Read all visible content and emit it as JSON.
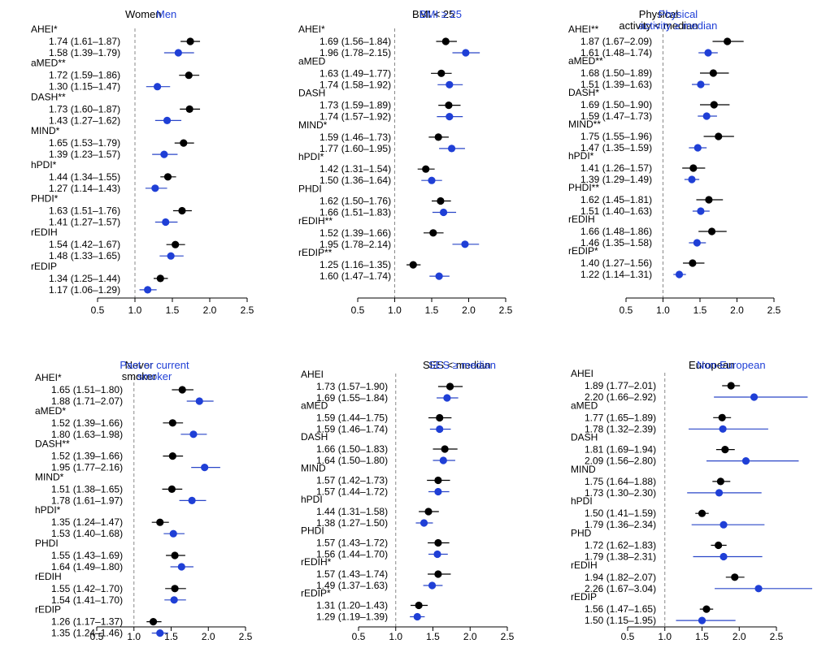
{
  "colors": {
    "group1": "#000000",
    "group2": "#1f3fd6",
    "refline": "#888888",
    "axis": "#000000",
    "cilineA": "#000000",
    "cilineB": "#2a46c8"
  },
  "chart_data": [
    {
      "type": "forest",
      "legend": {
        "group1": [
          "Women"
        ],
        "group2": [
          "Men"
        ]
      },
      "xlim": [
        0.5,
        2.5
      ],
      "ticks": [
        "0.5",
        "1.0",
        "1.5",
        "2.0",
        "2.5"
      ],
      "ref": 1.0,
      "rows": [
        {
          "label": "AHEI*",
          "g1": {
            "est": 1.74,
            "lo": 1.61,
            "hi": 1.87,
            "text": "1.74 (1.61–1.87)"
          },
          "g2": {
            "est": 1.58,
            "lo": 1.39,
            "hi": 1.79,
            "text": "1.58 (1.39–1.79)"
          }
        },
        {
          "label": "aMED**",
          "g1": {
            "est": 1.72,
            "lo": 1.59,
            "hi": 1.86,
            "text": "1.72 (1.59–1.86)"
          },
          "g2": {
            "est": 1.3,
            "lo": 1.15,
            "hi": 1.47,
            "text": "1.30 (1.15–1.47)"
          }
        },
        {
          "label": "DASH**",
          "g1": {
            "est": 1.73,
            "lo": 1.6,
            "hi": 1.87,
            "text": "1.73 (1.60–1.87)"
          },
          "g2": {
            "est": 1.43,
            "lo": 1.27,
            "hi": 1.62,
            "text": "1.43 (1.27–1.62)"
          }
        },
        {
          "label": "MIND*",
          "g1": {
            "est": 1.65,
            "lo": 1.53,
            "hi": 1.79,
            "text": "1.65 (1.53–1.79)"
          },
          "g2": {
            "est": 1.39,
            "lo": 1.23,
            "hi": 1.57,
            "text": "1.39 (1.23–1.57)"
          }
        },
        {
          "label": "hPDI*",
          "g1": {
            "est": 1.44,
            "lo": 1.34,
            "hi": 1.55,
            "text": "1.44 (1.34–1.55)"
          },
          "g2": {
            "est": 1.27,
            "lo": 1.14,
            "hi": 1.43,
            "text": "1.27 (1.14–1.43)"
          }
        },
        {
          "label": "PHDI*",
          "g1": {
            "est": 1.63,
            "lo": 1.51,
            "hi": 1.76,
            "text": "1.63 (1.51–1.76)"
          },
          "g2": {
            "est": 1.41,
            "lo": 1.27,
            "hi": 1.57,
            "text": "1.41 (1.27–1.57)"
          }
        },
        {
          "label": "rEDIH",
          "g1": {
            "est": 1.54,
            "lo": 1.42,
            "hi": 1.67,
            "text": "1.54 (1.42–1.67)"
          },
          "g2": {
            "est": 1.48,
            "lo": 1.33,
            "hi": 1.65,
            "text": "1.48 (1.33–1.65)"
          }
        },
        {
          "label": "rEDIP",
          "g1": {
            "est": 1.34,
            "lo": 1.25,
            "hi": 1.44,
            "text": "1.34 (1.25–1.44)"
          },
          "g2": {
            "est": 1.17,
            "lo": 1.06,
            "hi": 1.29,
            "text": "1.17 (1.06–1.29)"
          }
        }
      ]
    },
    {
      "type": "forest",
      "legend": {
        "group1": [
          "BMI < 25"
        ],
        "group2": [
          "BMI ≥ 25"
        ]
      },
      "xlim": [
        0.5,
        2.5
      ],
      "ticks": [
        "0.5",
        "1.0",
        "1.5",
        "2.0",
        "2.5"
      ],
      "ref": 1.0,
      "rows": [
        {
          "label": "AHEI*",
          "g1": {
            "est": 1.69,
            "lo": 1.56,
            "hi": 1.84,
            "text": "1.69 (1.56–1.84)"
          },
          "g2": {
            "est": 1.96,
            "lo": 1.78,
            "hi": 2.15,
            "text": "1.96 (1.78–2.15)"
          }
        },
        {
          "label": "aMED",
          "g1": {
            "est": 1.63,
            "lo": 1.49,
            "hi": 1.77,
            "text": "1.63 (1.49–1.77)"
          },
          "g2": {
            "est": 1.74,
            "lo": 1.58,
            "hi": 1.92,
            "text": "1.74 (1.58–1.92)"
          }
        },
        {
          "label": "DASH",
          "g1": {
            "est": 1.73,
            "lo": 1.59,
            "hi": 1.89,
            "text": "1.73 (1.59–1.89)"
          },
          "g2": {
            "est": 1.74,
            "lo": 1.57,
            "hi": 1.92,
            "text": "1.74 (1.57–1.92)"
          }
        },
        {
          "label": "MIND*",
          "g1": {
            "est": 1.59,
            "lo": 1.46,
            "hi": 1.73,
            "text": "1.59 (1.46–1.73)"
          },
          "g2": {
            "est": 1.77,
            "lo": 1.6,
            "hi": 1.95,
            "text": "1.77 (1.60–1.95)"
          }
        },
        {
          "label": "hPDI*",
          "g1": {
            "est": 1.42,
            "lo": 1.31,
            "hi": 1.54,
            "text": "1.42 (1.31–1.54)"
          },
          "g2": {
            "est": 1.5,
            "lo": 1.36,
            "hi": 1.64,
            "text": "1.50 (1.36–1.64)"
          }
        },
        {
          "label": "PHDI",
          "g1": {
            "est": 1.62,
            "lo": 1.5,
            "hi": 1.76,
            "text": "1.62 (1.50–1.76)"
          },
          "g2": {
            "est": 1.66,
            "lo": 1.51,
            "hi": 1.83,
            "text": "1.66 (1.51–1.83)"
          }
        },
        {
          "label": "rEDIH**",
          "g1": {
            "est": 1.52,
            "lo": 1.39,
            "hi": 1.66,
            "text": "1.52 (1.39–1.66)"
          },
          "g2": {
            "est": 1.95,
            "lo": 1.78,
            "hi": 2.14,
            "text": "1.95 (1.78–2.14)"
          }
        },
        {
          "label": "rEDIP**",
          "g1": {
            "est": 1.25,
            "lo": 1.16,
            "hi": 1.35,
            "text": "1.25 (1.16–1.35)"
          },
          "g2": {
            "est": 1.6,
            "lo": 1.47,
            "hi": 1.74,
            "text": "1.60 (1.47–1.74)"
          }
        }
      ]
    },
    {
      "type": "forest",
      "legend": {
        "group1": [
          "Physical",
          "activity < median"
        ],
        "group2": [
          "Physical",
          "activity ≥ median"
        ]
      },
      "xlim": [
        0.5,
        2.5
      ],
      "ticks": [
        "0.5",
        "1.0",
        "1.5",
        "2.0",
        "2.5"
      ],
      "ref": 1.0,
      "rows": [
        {
          "label": "AHEI**",
          "g1": {
            "est": 1.87,
            "lo": 1.67,
            "hi": 2.09,
            "text": "1.87 (1.67–2.09)"
          },
          "g2": {
            "est": 1.61,
            "lo": 1.48,
            "hi": 1.74,
            "text": "1.61 (1.48–1.74)"
          }
        },
        {
          "label": "aMED**",
          "g1": {
            "est": 1.68,
            "lo": 1.5,
            "hi": 1.89,
            "text": "1.68 (1.50–1.89)"
          },
          "g2": {
            "est": 1.51,
            "lo": 1.39,
            "hi": 1.63,
            "text": "1.51 (1.39–1.63)"
          }
        },
        {
          "label": "DASH*",
          "g1": {
            "est": 1.69,
            "lo": 1.5,
            "hi": 1.9,
            "text": "1.69 (1.50–1.90)"
          },
          "g2": {
            "est": 1.59,
            "lo": 1.47,
            "hi": 1.73,
            "text": "1.59 (1.47–1.73)"
          }
        },
        {
          "label": "MIND**",
          "g1": {
            "est": 1.75,
            "lo": 1.55,
            "hi": 1.96,
            "text": "1.75 (1.55–1.96)"
          },
          "g2": {
            "est": 1.47,
            "lo": 1.35,
            "hi": 1.59,
            "text": "1.47 (1.35–1.59)"
          }
        },
        {
          "label": "hPDI*",
          "g1": {
            "est": 1.41,
            "lo": 1.26,
            "hi": 1.57,
            "text": "1.41 (1.26–1.57)"
          },
          "g2": {
            "est": 1.39,
            "lo": 1.29,
            "hi": 1.49,
            "text": "1.39 (1.29–1.49)"
          }
        },
        {
          "label": "PHDI**",
          "g1": {
            "est": 1.62,
            "lo": 1.45,
            "hi": 1.81,
            "text": "1.62 (1.45–1.81)"
          },
          "g2": {
            "est": 1.51,
            "lo": 1.4,
            "hi": 1.63,
            "text": "1.51 (1.40–1.63)"
          }
        },
        {
          "label": "rEDIH",
          "g1": {
            "est": 1.66,
            "lo": 1.48,
            "hi": 1.86,
            "text": "1.66 (1.48–1.86)"
          },
          "g2": {
            "est": 1.46,
            "lo": 1.35,
            "hi": 1.58,
            "text": "1.46 (1.35–1.58)"
          }
        },
        {
          "label": "rEDIP*",
          "g1": {
            "est": 1.4,
            "lo": 1.27,
            "hi": 1.56,
            "text": "1.40 (1.27–1.56)"
          },
          "g2": {
            "est": 1.22,
            "lo": 1.14,
            "hi": 1.31,
            "text": "1.22 (1.14–1.31)"
          }
        }
      ]
    },
    {
      "type": "forest",
      "legend": {
        "group1": [
          "Never",
          "smoker"
        ],
        "group2": [
          "Past or current",
          "smoker"
        ]
      },
      "xlim": [
        0.5,
        2.5
      ],
      "ticks": [
        "0.5",
        "1.0",
        "1.5",
        "2.0",
        "2.5"
      ],
      "ref": 1.0,
      "rows": [
        {
          "label": "AHEI*",
          "g1": {
            "est": 1.65,
            "lo": 1.51,
            "hi": 1.8,
            "text": "1.65 (1.51–1.80)"
          },
          "g2": {
            "est": 1.88,
            "lo": 1.71,
            "hi": 2.07,
            "text": "1.88 (1.71–2.07)"
          }
        },
        {
          "label": "aMED*",
          "g1": {
            "est": 1.52,
            "lo": 1.39,
            "hi": 1.66,
            "text": "1.52 (1.39–1.66)"
          },
          "g2": {
            "est": 1.8,
            "lo": 1.63,
            "hi": 1.98,
            "text": "1.80 (1.63–1.98)"
          }
        },
        {
          "label": "DASH**",
          "g1": {
            "est": 1.52,
            "lo": 1.39,
            "hi": 1.66,
            "text": "1.52 (1.39–1.66)"
          },
          "g2": {
            "est": 1.95,
            "lo": 1.77,
            "hi": 2.16,
            "text": "1.95 (1.77–2.16)"
          }
        },
        {
          "label": "MIND*",
          "g1": {
            "est": 1.51,
            "lo": 1.38,
            "hi": 1.65,
            "text": "1.51 (1.38–1.65)"
          },
          "g2": {
            "est": 1.78,
            "lo": 1.61,
            "hi": 1.97,
            "text": "1.78 (1.61–1.97)"
          }
        },
        {
          "label": "hPDI*",
          "g1": {
            "est": 1.35,
            "lo": 1.24,
            "hi": 1.47,
            "text": "1.35 (1.24–1.47)"
          },
          "g2": {
            "est": 1.53,
            "lo": 1.4,
            "hi": 1.68,
            "text": "1.53 (1.40–1.68)"
          }
        },
        {
          "label": "PHDI",
          "g1": {
            "est": 1.55,
            "lo": 1.43,
            "hi": 1.69,
            "text": "1.55 (1.43–1.69)"
          },
          "g2": {
            "est": 1.64,
            "lo": 1.49,
            "hi": 1.8,
            "text": "1.64 (1.49–1.80)"
          }
        },
        {
          "label": "rEDIH",
          "g1": {
            "est": 1.55,
            "lo": 1.42,
            "hi": 1.7,
            "text": "1.55 (1.42–1.70)"
          },
          "g2": {
            "est": 1.54,
            "lo": 1.41,
            "hi": 1.7,
            "text": "1.54 (1.41–1.70)"
          }
        },
        {
          "label": "rEDIP",
          "g1": {
            "est": 1.26,
            "lo": 1.17,
            "hi": 1.37,
            "text": "1.26 (1.17–1.37)"
          },
          "g2": {
            "est": 1.35,
            "lo": 1.24,
            "hi": 1.46,
            "text": "1.35 (1.24–1.46)"
          }
        }
      ]
    },
    {
      "type": "forest",
      "legend": {
        "group1": [
          "SES < median"
        ],
        "group2": [
          "SES ≥ median"
        ]
      },
      "xlim": [
        0.5,
        2.5
      ],
      "ticks": [
        "0.5",
        "1.0",
        "1.5",
        "2.0",
        "2.5"
      ],
      "ref": 1.0,
      "rows": [
        {
          "label": "AHEI",
          "g1": {
            "est": 1.73,
            "lo": 1.57,
            "hi": 1.9,
            "text": "1.73 (1.57–1.90)"
          },
          "g2": {
            "est": 1.69,
            "lo": 1.55,
            "hi": 1.84,
            "text": "1.69 (1.55–1.84)"
          }
        },
        {
          "label": "aMED",
          "g1": {
            "est": 1.59,
            "lo": 1.44,
            "hi": 1.75,
            "text": "1.59 (1.44–1.75)"
          },
          "g2": {
            "est": 1.59,
            "lo": 1.46,
            "hi": 1.74,
            "text": "1.59 (1.46–1.74)"
          }
        },
        {
          "label": "DASH",
          "g1": {
            "est": 1.66,
            "lo": 1.5,
            "hi": 1.83,
            "text": "1.66 (1.50–1.83)"
          },
          "g2": {
            "est": 1.64,
            "lo": 1.5,
            "hi": 1.8,
            "text": "1.64 (1.50–1.80)"
          }
        },
        {
          "label": "MIND",
          "g1": {
            "est": 1.57,
            "lo": 1.42,
            "hi": 1.73,
            "text": "1.57 (1.42–1.73)"
          },
          "g2": {
            "est": 1.57,
            "lo": 1.44,
            "hi": 1.72,
            "text": "1.57 (1.44–1.72)"
          }
        },
        {
          "label": "hPDI",
          "g1": {
            "est": 1.44,
            "lo": 1.31,
            "hi": 1.58,
            "text": "1.44 (1.31–1.58)"
          },
          "g2": {
            "est": 1.38,
            "lo": 1.27,
            "hi": 1.5,
            "text": "1.38 (1.27–1.50)"
          }
        },
        {
          "label": "PHDI",
          "g1": {
            "est": 1.57,
            "lo": 1.43,
            "hi": 1.72,
            "text": "1.57 (1.43–1.72)"
          },
          "g2": {
            "est": 1.56,
            "lo": 1.44,
            "hi": 1.7,
            "text": "1.56 (1.44–1.70)"
          }
        },
        {
          "label": "rEDIH*",
          "g1": {
            "est": 1.57,
            "lo": 1.43,
            "hi": 1.74,
            "text": "1.57 (1.43–1.74)"
          },
          "g2": {
            "est": 1.49,
            "lo": 1.37,
            "hi": 1.63,
            "text": "1.49 (1.37–1.63)"
          }
        },
        {
          "label": "rEDIP*",
          "g1": {
            "est": 1.31,
            "lo": 1.2,
            "hi": 1.43,
            "text": "1.31 (1.20–1.43)"
          },
          "g2": {
            "est": 1.29,
            "lo": 1.19,
            "hi": 1.39,
            "text": "1.29 (1.19–1.39)"
          }
        }
      ]
    },
    {
      "type": "forest",
      "legend": {
        "group1": [
          "European"
        ],
        "group2": [
          "Non-European"
        ]
      },
      "xlim": [
        0.5,
        2.5
      ],
      "ticks": [
        "0.5",
        "1.0",
        "1.5",
        "2.0",
        "2.5"
      ],
      "ref": 1.0,
      "rows": [
        {
          "label": "AHEI",
          "g1": {
            "est": 1.89,
            "lo": 1.77,
            "hi": 2.01,
            "text": "1.89 (1.77–2.01)"
          },
          "g2": {
            "est": 2.2,
            "lo": 1.66,
            "hi": 2.92,
            "text": "2.20 (1.66–2.92)"
          }
        },
        {
          "label": "aMED",
          "g1": {
            "est": 1.77,
            "lo": 1.65,
            "hi": 1.89,
            "text": "1.77 (1.65–1.89)"
          },
          "g2": {
            "est": 1.78,
            "lo": 1.32,
            "hi": 2.39,
            "text": "1.78 (1.32–2.39)"
          }
        },
        {
          "label": "DASH",
          "g1": {
            "est": 1.81,
            "lo": 1.69,
            "hi": 1.94,
            "text": "1.81 (1.69–1.94)"
          },
          "g2": {
            "est": 2.09,
            "lo": 1.56,
            "hi": 2.8,
            "text": "2.09 (1.56–2.80)"
          }
        },
        {
          "label": "MIND",
          "g1": {
            "est": 1.75,
            "lo": 1.64,
            "hi": 1.88,
            "text": "1.75 (1.64–1.88)"
          },
          "g2": {
            "est": 1.73,
            "lo": 1.3,
            "hi": 2.3,
            "text": "1.73 (1.30–2.30)"
          }
        },
        {
          "label": "hPDI",
          "g1": {
            "est": 1.5,
            "lo": 1.41,
            "hi": 1.59,
            "text": "1.50 (1.41–1.59)"
          },
          "g2": {
            "est": 1.79,
            "lo": 1.36,
            "hi": 2.34,
            "text": "1.79 (1.36–2.34)"
          }
        },
        {
          "label": "PHD",
          "g1": {
            "est": 1.72,
            "lo": 1.62,
            "hi": 1.83,
            "text": "1.72 (1.62–1.83)"
          },
          "g2": {
            "est": 1.79,
            "lo": 1.38,
            "hi": 2.31,
            "text": "1.79 (1.38–2.31)"
          }
        },
        {
          "label": "rEDIH",
          "g1": {
            "est": 1.94,
            "lo": 1.82,
            "hi": 2.07,
            "text": "1.94 (1.82–2.07)"
          },
          "g2": {
            "est": 2.26,
            "lo": 1.67,
            "hi": 3.04,
            "text": "2.26 (1.67–3.04)"
          }
        },
        {
          "label": "rEDIP",
          "g1": {
            "est": 1.56,
            "lo": 1.47,
            "hi": 1.65,
            "text": "1.56 (1.47–1.65)"
          },
          "g2": {
            "est": 1.5,
            "lo": 1.15,
            "hi": 1.95,
            "text": "1.50 (1.15–1.95)"
          }
        }
      ]
    }
  ]
}
